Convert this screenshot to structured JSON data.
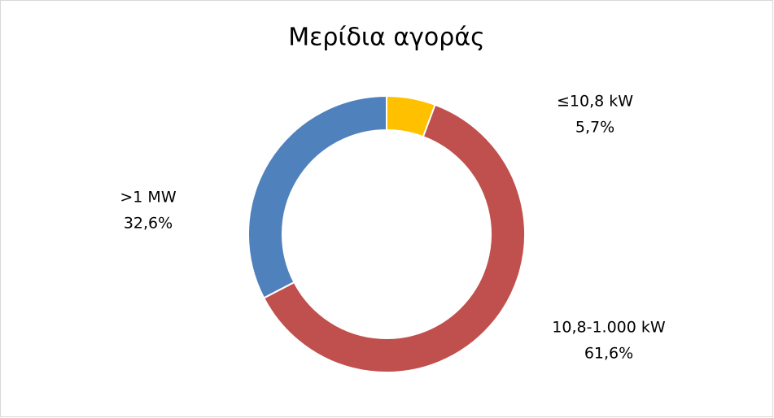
{
  "chart_data": {
    "type": "donut",
    "title": "Μερίδια αγοράς",
    "categories": [
      "≤10,8 kW",
      "10,8-1.000 kW",
      ">1 MW"
    ],
    "values": [
      5.7,
      61.6,
      32.6
    ],
    "value_labels": [
      "5,7%",
      "61,6%",
      "32,6%"
    ],
    "colors": [
      "#FFC000",
      "#C0504D",
      "#4F81BD"
    ]
  }
}
